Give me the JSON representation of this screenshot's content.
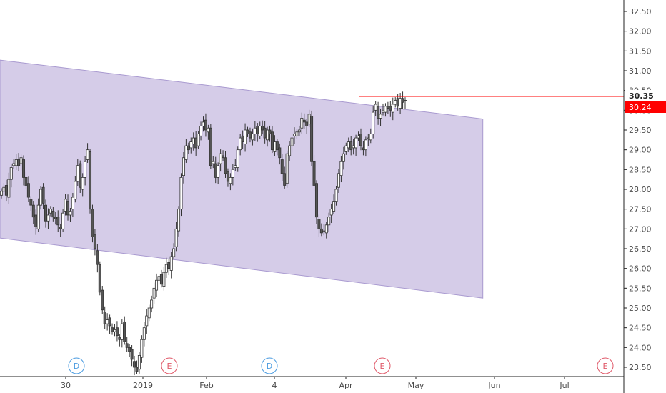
{
  "chart_data": {
    "type": "candlestick",
    "y_axis": {
      "position": "right",
      "ticks": [
        "32.50",
        "32.00",
        "31.50",
        "31.00",
        "30.50",
        "30.00",
        "29.50",
        "29.00",
        "28.50",
        "28.00",
        "27.50",
        "27.00",
        "26.50",
        "26.00",
        "25.50",
        "25.00",
        "24.50",
        "24.00",
        "23.50"
      ],
      "range": [
        23.25,
        32.85
      ]
    },
    "x_axis": {
      "ticks": [
        "30",
        "2019",
        "Feb",
        "4",
        "Apr",
        "May",
        "Jun",
        "Jul"
      ],
      "start_date": "2018-10-08",
      "end_date": "2019-07-31"
    },
    "price_labels": {
      "high_marker": "30.35",
      "last_price": "30.24"
    },
    "horizontal_level": 30.35,
    "channel": {
      "color": "#d5cce8",
      "border_color": "#a99ad0",
      "upper_start": 31.27,
      "upper_end": 29.78,
      "lower_start": 26.77,
      "lower_end": 25.25,
      "start_date": "2018-10-08",
      "end_date": "2019-05-22"
    },
    "events": [
      {
        "label": "D",
        "type": "dividend",
        "date": "2018-11-30",
        "color": "#4a9be0"
      },
      {
        "label": "E",
        "type": "earnings",
        "date": "2019-01-22",
        "color": "#e05a6a"
      },
      {
        "label": "D",
        "type": "dividend",
        "date": "2019-03-01",
        "color": "#4a9be0"
      },
      {
        "label": "E",
        "type": "earnings",
        "date": "2019-04-23",
        "color": "#e05a6a"
      },
      {
        "label": "E",
        "type": "earnings",
        "date": "2019-07-24",
        "color": "#e05a6a"
      }
    ],
    "series": {
      "up_color": "#ffffff",
      "down_color": "#555555",
      "wick_color": "#333333",
      "closes": [
        27.95,
        28.05,
        27.85,
        28.25,
        28.55,
        28.65,
        28.75,
        28.6,
        28.8,
        28.3,
        28.1,
        27.8,
        27.6,
        27.3,
        27.05,
        27.6,
        28.0,
        27.65,
        27.2,
        27.35,
        27.5,
        27.3,
        27.25,
        27.1,
        27.0,
        27.4,
        27.75,
        27.35,
        27.45,
        27.8,
        28.2,
        28.6,
        28.05,
        28.3,
        28.7,
        29.0,
        27.5,
        26.8,
        26.5,
        26.1,
        25.4,
        24.95,
        24.6,
        24.7,
        24.55,
        24.4,
        24.45,
        24.3,
        24.2,
        24.6,
        24.15,
        24.0,
        23.9,
        23.7,
        23.5,
        23.4,
        23.8,
        24.2,
        24.5,
        24.8,
        25.0,
        25.2,
        25.5,
        25.7,
        25.8,
        25.6,
        25.9,
        26.1,
        26.0,
        26.3,
        26.5,
        27.0,
        27.5,
        28.3,
        28.8,
        29.1,
        29.0,
        29.2,
        29.3,
        29.05,
        29.4,
        29.6,
        29.7,
        29.5,
        29.55,
        28.6,
        28.7,
        28.3,
        28.6,
        28.9,
        28.8,
        28.4,
        28.2,
        28.3,
        28.5,
        28.6,
        29.0,
        29.3,
        29.2,
        29.5,
        29.4,
        29.3,
        29.4,
        29.55,
        29.4,
        29.6,
        29.5,
        29.3,
        29.5,
        29.4,
        29.0,
        29.2,
        29.0,
        28.8,
        28.4,
        28.1,
        28.9,
        29.1,
        29.3,
        29.4,
        29.45,
        29.5,
        29.8,
        29.7,
        29.6,
        29.9,
        28.7,
        28.1,
        27.3,
        27.0,
        26.9,
        26.95,
        27.1,
        27.3,
        27.5,
        27.7,
        28.0,
        28.4,
        28.7,
        28.9,
        29.1,
        29.2,
        29.0,
        29.1,
        29.3,
        29.35,
        29.1,
        29.0,
        29.25,
        29.3,
        29.4,
        29.95,
        30.15,
        29.8,
        29.9,
        30.0,
        30.1,
        30.05,
        30.0,
        30.15,
        30.25,
        30.1,
        30.3,
        30.2,
        30.24
      ]
    }
  }
}
